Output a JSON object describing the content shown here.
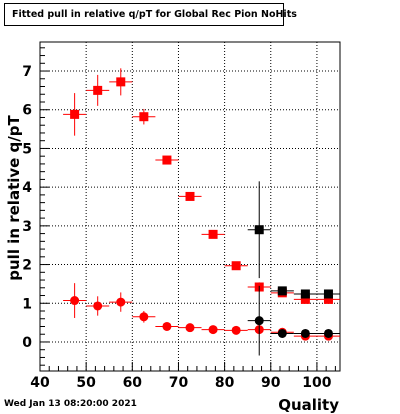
{
  "canvas": {
    "title": "Fitted pull in relative q/pT  for Global Rec Pion NoHits",
    "timestamp": "Wed Jan 13 08:20:00 2021"
  },
  "chart_data": {
    "type": "scatter",
    "title": "Fitted pull in relative q/pT  for Global Rec Pion NoHits",
    "xlabel": "Quality",
    "ylabel": "pull in relative q/pT",
    "xlim": [
      40,
      105
    ],
    "ylim": [
      -0.75,
      7.75
    ],
    "x_ticks": [
      40,
      50,
      60,
      70,
      80,
      90,
      100
    ],
    "x_tick_labels": [
      "40",
      "50",
      "60",
      "70",
      "80",
      "90",
      "100"
    ],
    "y_ticks": [
      0,
      1,
      2,
      3,
      4,
      5,
      6,
      7
    ],
    "y_tick_labels": [
      "0",
      "1",
      "2",
      "3",
      "4",
      "5",
      "6",
      "7"
    ],
    "grid": true,
    "series": [
      {
        "color": "#ff0000",
        "marker": "square",
        "x": [
          47.5,
          52.5,
          57.5,
          62.5,
          67.5,
          72.5,
          77.5,
          82.5,
          87.5,
          92.5,
          97.5,
          102.5
        ],
        "y": [
          5.88,
          6.5,
          6.72,
          5.82,
          4.7,
          3.76,
          2.78,
          1.97,
          1.42,
          1.27,
          1.1,
          1.1
        ],
        "yerr": [
          0.55,
          0.4,
          0.35,
          0.2,
          0.08,
          0.06,
          0.06,
          0.07,
          0.12,
          0.1,
          0.06,
          0.06
        ],
        "xerr": [
          2.5,
          2.5,
          2.5,
          2.5,
          2.5,
          2.5,
          2.5,
          2.5,
          2.5,
          2.5,
          2.5,
          2.5
        ]
      },
      {
        "color": "#ff0000",
        "marker": "circle",
        "x": [
          47.5,
          52.5,
          57.5,
          62.5,
          67.5,
          72.5,
          77.5,
          82.5,
          87.5,
          92.5,
          97.5,
          102.5
        ],
        "y": [
          1.07,
          0.93,
          1.03,
          0.65,
          0.4,
          0.37,
          0.32,
          0.3,
          0.32,
          0.25,
          0.15,
          0.15
        ],
        "yerr": [
          0.45,
          0.25,
          0.25,
          0.15,
          0.05,
          0.04,
          0.04,
          0.04,
          0.05,
          0.06,
          0.04,
          0.04
        ],
        "xerr": [
          2.5,
          2.5,
          2.5,
          2.5,
          2.5,
          2.5,
          2.5,
          2.5,
          2.5,
          2.5,
          2.5,
          2.5
        ]
      },
      {
        "color": "#000000",
        "marker": "square",
        "x": [
          87.5,
          92.5,
          97.5,
          102.5
        ],
        "y": [
          2.9,
          1.32,
          1.24,
          1.24
        ],
        "yerr": [
          1.25,
          0.08,
          0.06,
          0.06
        ],
        "xerr": [
          2.5,
          2.5,
          2.5,
          2.5
        ]
      },
      {
        "color": "#000000",
        "marker": "circle",
        "x": [
          87.5,
          92.5,
          97.5,
          102.5
        ],
        "y": [
          0.55,
          0.22,
          0.22,
          0.22
        ],
        "yerr": [
          0.9,
          0.05,
          0.04,
          0.04
        ],
        "xerr": [
          2.5,
          2.5,
          2.5,
          2.5
        ]
      }
    ]
  }
}
